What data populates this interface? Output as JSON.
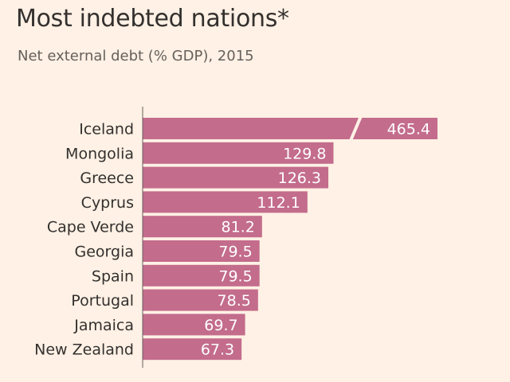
{
  "title": "Most indebted nations*",
  "subtitle": "Net external debt (% GDP), 2015",
  "colors": {
    "background": "#fff1e5",
    "bar": "#c36c8c",
    "text": "#33302e",
    "axis": "#66605c"
  },
  "chart_data": {
    "type": "bar",
    "orientation": "horizontal",
    "title": "Most indebted nations*",
    "subtitle": "Net external debt (% GDP), 2015",
    "categories": [
      "Iceland",
      "Mongolia",
      "Greece",
      "Cyprus",
      "Cape Verde",
      "Georgia",
      "Spain",
      "Portugal",
      "Jamaica",
      "New Zealand"
    ],
    "values": [
      465.4,
      129.8,
      126.3,
      112.1,
      81.2,
      79.5,
      79.5,
      78.5,
      69.7,
      67.3
    ],
    "value_labels": [
      "465.4",
      "129.8",
      "126.3",
      "112.1",
      "81.2",
      "79.5",
      "79.5",
      "78.5",
      "69.7",
      "67.3"
    ],
    "axis_break": true,
    "xlabel": "",
    "ylabel": "",
    "grid": false,
    "legend": "none"
  }
}
